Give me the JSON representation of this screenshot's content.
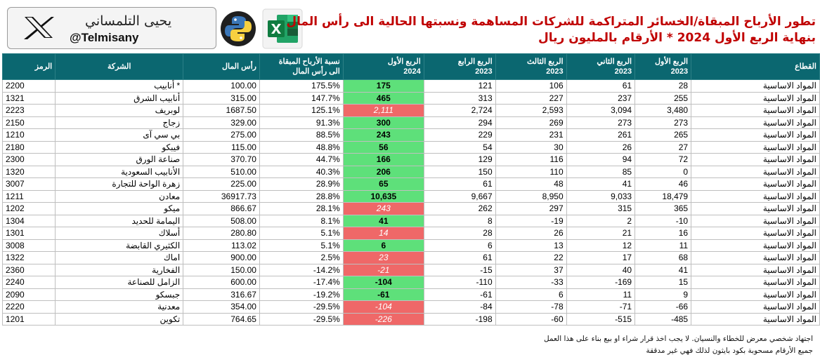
{
  "brand": {
    "arabic_name": "يحيى التلمساني",
    "handle": "@Telmisany"
  },
  "title": {
    "line1": "تطور الأرباح المبقاة/الخسائر المتراكمة للشركات المساهمة ونسبتها الحالية الى رأس المال",
    "line2": "بنهاية الربع الأول 2024  *  الأرقام بالمليون ريال"
  },
  "colors": {
    "header_bg": "#0b6770",
    "positive_bg": "#5ee07a",
    "negative_bg": "#ef6868",
    "title": "#c00000"
  },
  "icons": [
    "x-logo-icon",
    "python-logo-icon",
    "excel-logo-icon"
  ],
  "columns": [
    {
      "key": "code",
      "line1": "الرمز",
      "line2": ""
    },
    {
      "key": "company",
      "line1": "الشركة",
      "line2": ""
    },
    {
      "key": "capital",
      "line1": "رأس المال",
      "line2": ""
    },
    {
      "key": "ratio",
      "line1": "نسبة الأرباح المبقاة",
      "line2": "الى رأس المال"
    },
    {
      "key": "q1_2024",
      "line1": "الربع الأول",
      "line2": "2024"
    },
    {
      "key": "q4_2023",
      "line1": "الربع الرابع",
      "line2": "2023"
    },
    {
      "key": "q3_2023",
      "line1": "الربع الثالث",
      "line2": "2023"
    },
    {
      "key": "q2_2023",
      "line1": "الربع الثاني",
      "line2": "2023"
    },
    {
      "key": "q1_2023",
      "line1": "الربع الأول",
      "line2": "2023"
    },
    {
      "key": "sector",
      "line1": "القطاع",
      "line2": ""
    }
  ],
  "rows": [
    {
      "code": "2200",
      "company": "أنابيب *",
      "capital": "100.00",
      "ratio": "175.5%",
      "q1_2024": "175",
      "q4_2023": "121",
      "q3_2023": "106",
      "q2_2023": "61",
      "q1_2023": "28",
      "sector": "المواد الاساسية",
      "sign": "pos"
    },
    {
      "code": "1321",
      "company": "أنابيب الشرق",
      "capital": "315.00",
      "ratio": "147.7%",
      "q1_2024": "465",
      "q4_2023": "313",
      "q3_2023": "227",
      "q2_2023": "237",
      "q1_2023": "255",
      "sector": "المواد الاساسية",
      "sign": "pos"
    },
    {
      "code": "2223",
      "company": "لوبريف",
      "capital": "1687.50",
      "ratio": "125.1%",
      "q1_2024": "2,111",
      "q4_2023": "2,724",
      "q3_2023": "2,593",
      "q2_2023": "3,094",
      "q1_2023": "3,480",
      "sector": "المواد الاساسية",
      "sign": "neg"
    },
    {
      "code": "2150",
      "company": "زجاج",
      "capital": "329.00",
      "ratio": "91.3%",
      "q1_2024": "300",
      "q4_2023": "294",
      "q3_2023": "269",
      "q2_2023": "273",
      "q1_2023": "273",
      "sector": "المواد الاساسية",
      "sign": "pos"
    },
    {
      "code": "1210",
      "company": "بي سي آى",
      "capital": "275.00",
      "ratio": "88.5%",
      "q1_2024": "243",
      "q4_2023": "229",
      "q3_2023": "231",
      "q2_2023": "261",
      "q1_2023": "265",
      "sector": "المواد الاساسية",
      "sign": "pos"
    },
    {
      "code": "2180",
      "company": "فيبكو",
      "capital": "115.00",
      "ratio": "48.8%",
      "q1_2024": "56",
      "q4_2023": "54",
      "q3_2023": "30",
      "q2_2023": "26",
      "q1_2023": "27",
      "sector": "المواد الاساسية",
      "sign": "pos"
    },
    {
      "code": "2300",
      "company": "صناعة الورق",
      "capital": "370.70",
      "ratio": "44.7%",
      "q1_2024": "166",
      "q4_2023": "129",
      "q3_2023": "116",
      "q2_2023": "94",
      "q1_2023": "72",
      "sector": "المواد الاساسية",
      "sign": "pos"
    },
    {
      "code": "1320",
      "company": "الأنابيب السعودية",
      "capital": "510.00",
      "ratio": "40.3%",
      "q1_2024": "206",
      "q4_2023": "150",
      "q3_2023": "110",
      "q2_2023": "85",
      "q1_2023": "0",
      "sector": "المواد الاساسية",
      "sign": "pos"
    },
    {
      "code": "3007",
      "company": "زهرة الواحة للتجارة",
      "capital": "225.00",
      "ratio": "28.9%",
      "q1_2024": "65",
      "q4_2023": "61",
      "q3_2023": "48",
      "q2_2023": "41",
      "q1_2023": "46",
      "sector": "المواد الاساسية",
      "sign": "pos"
    },
    {
      "code": "1211",
      "company": "معادن",
      "capital": "36917.73",
      "ratio": "28.8%",
      "q1_2024": "10,635",
      "q4_2023": "9,667",
      "q3_2023": "8,950",
      "q2_2023": "9,033",
      "q1_2023": "18,479",
      "sector": "المواد الاساسية",
      "sign": "pos"
    },
    {
      "code": "1202",
      "company": "ميكو",
      "capital": "866.67",
      "ratio": "28.1%",
      "q1_2024": "243",
      "q4_2023": "262",
      "q3_2023": "297",
      "q2_2023": "315",
      "q1_2023": "365",
      "sector": "المواد الاساسية",
      "sign": "neg"
    },
    {
      "code": "1304",
      "company": "اليمامة للحديد",
      "capital": "508.00",
      "ratio": "8.1%",
      "q1_2024": "41",
      "q4_2023": "8",
      "q3_2023": "-19",
      "q2_2023": "2",
      "q1_2023": "-10",
      "sector": "المواد الاساسية",
      "sign": "pos"
    },
    {
      "code": "1301",
      "company": "أسلاك",
      "capital": "280.80",
      "ratio": "5.1%",
      "q1_2024": "14",
      "q4_2023": "28",
      "q3_2023": "26",
      "q2_2023": "21",
      "q1_2023": "16",
      "sector": "المواد الاساسية",
      "sign": "neg"
    },
    {
      "code": "3008",
      "company": "الكثيري القابضة",
      "capital": "113.02",
      "ratio": "5.1%",
      "q1_2024": "6",
      "q4_2023": "6",
      "q3_2023": "13",
      "q2_2023": "12",
      "q1_2023": "11",
      "sector": "المواد الاساسية",
      "sign": "pos"
    },
    {
      "code": "1322",
      "company": "اماك",
      "capital": "900.00",
      "ratio": "2.5%",
      "q1_2024": "23",
      "q4_2023": "61",
      "q3_2023": "22",
      "q2_2023": "17",
      "q1_2023": "68",
      "sector": "المواد الاساسية",
      "sign": "neg"
    },
    {
      "code": "2360",
      "company": "الفخارية",
      "capital": "150.00",
      "ratio": "-14.2%",
      "q1_2024": "-21",
      "q4_2023": "-15",
      "q3_2023": "37",
      "q2_2023": "40",
      "q1_2023": "41",
      "sector": "المواد الاساسية",
      "sign": "neg"
    },
    {
      "code": "2240",
      "company": "الزامل للصناعة",
      "capital": "600.00",
      "ratio": "-17.4%",
      "q1_2024": "-104",
      "q4_2023": "-110",
      "q3_2023": "-33",
      "q2_2023": "-169",
      "q1_2023": "15",
      "sector": "المواد الاساسية",
      "sign": "pos"
    },
    {
      "code": "2090",
      "company": "جبسكو",
      "capital": "316.67",
      "ratio": "-19.2%",
      "q1_2024": "-61",
      "q4_2023": "-61",
      "q3_2023": "6",
      "q2_2023": "11",
      "q1_2023": "9",
      "sector": "المواد الاساسية",
      "sign": "pos"
    },
    {
      "code": "2220",
      "company": "معدنية",
      "capital": "354.00",
      "ratio": "-29.5%",
      "q1_2024": "-104",
      "q4_2023": "-84",
      "q3_2023": "-78",
      "q2_2023": "-71",
      "q1_2023": "-66",
      "sector": "المواد الاساسية",
      "sign": "neg"
    },
    {
      "code": "1201",
      "company": "تكوين",
      "capital": "764.65",
      "ratio": "-29.5%",
      "q1_2024": "-226",
      "q4_2023": "-198",
      "q3_2023": "-60",
      "q2_2023": "-515",
      "q1_2023": "-485",
      "sector": "المواد الاساسية",
      "sign": "neg"
    }
  ],
  "notes": {
    "line1": "اجتهاد شخصي معرض للخطاء والنسيان. لا يجب اخذ قرار شراء او بيع بناء على هذا العمل",
    "line2": "جميع الأرقام مسحوبة بكود بايثون لذلك فهي غير مدققة"
  }
}
